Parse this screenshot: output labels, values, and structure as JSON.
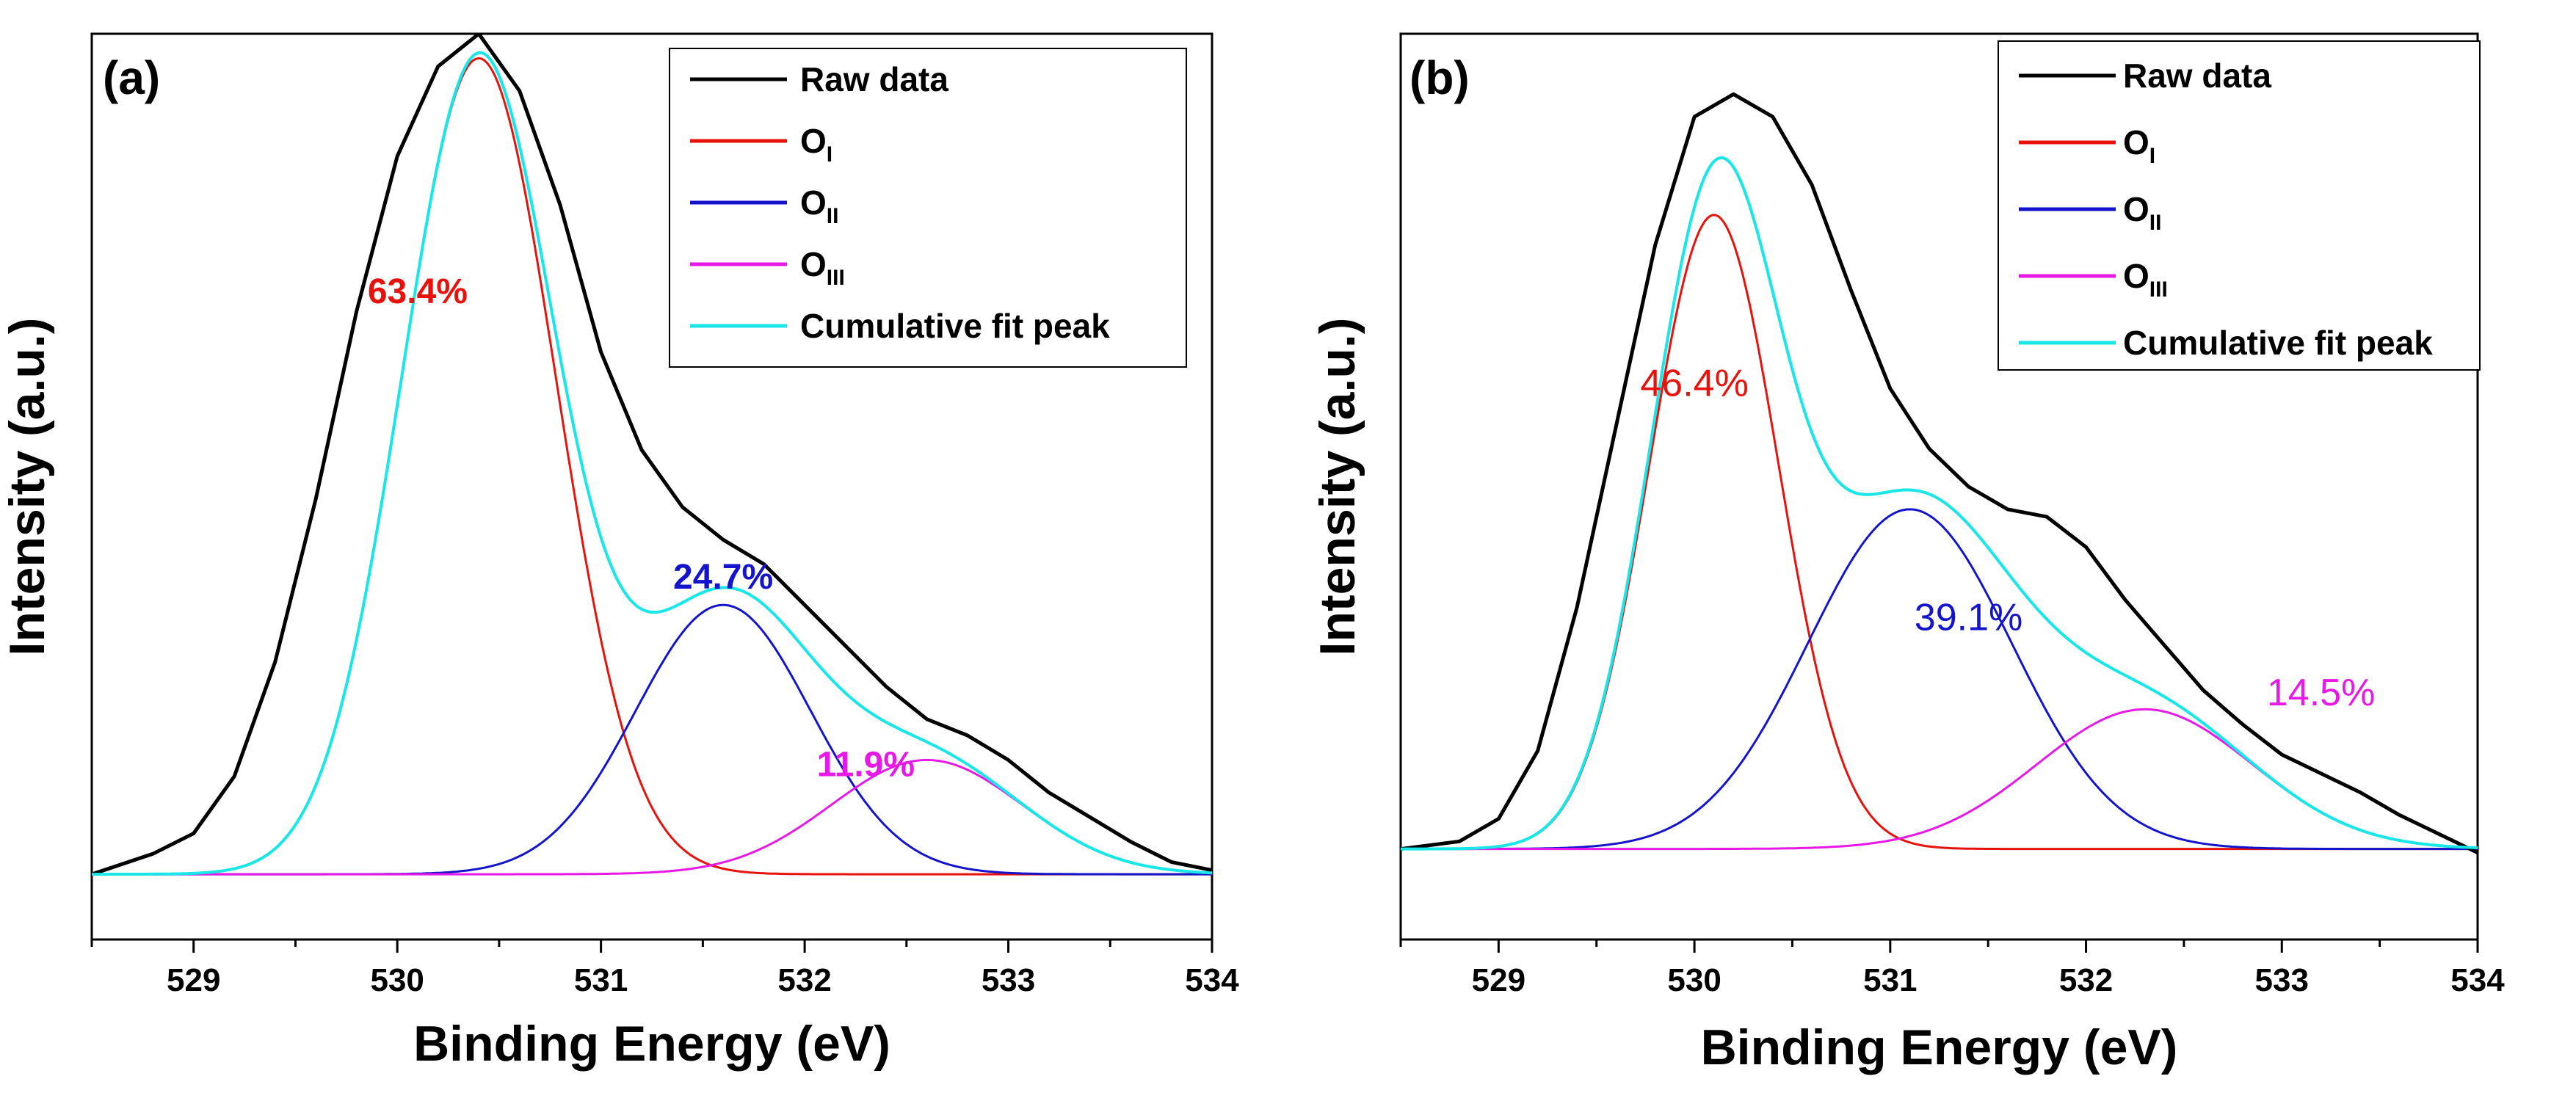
{
  "chart_data": [
    {
      "type": "line",
      "panel_label": "(a)",
      "xlabel": "Binding Energy (eV)",
      "ylabel": "Intensity (a.u.)",
      "xlim": [
        528.5,
        534
      ],
      "ylim": [
        -0.08,
        1.03
      ],
      "xticks": [
        "529",
        "530",
        "531",
        "532",
        "533",
        "534"
      ],
      "grid": false,
      "legend_position": "top-right",
      "legend": [
        {
          "main": "Raw data",
          "sub": "",
          "color": "#000000"
        },
        {
          "main": "O",
          "sub": "I",
          "color": "#e8120c"
        },
        {
          "main": "O",
          "sub": "II",
          "color": "#1414cc"
        },
        {
          "main": "O",
          "sub": "III",
          "color": "#e619e6"
        },
        {
          "main": "Cumulative fit peak",
          "sub": "",
          "color": "#19e6e6"
        }
      ],
      "annotations": [
        {
          "text": "63.4%",
          "x": 530.1,
          "y": 0.7,
          "color": "#e8120c"
        },
        {
          "text": "24.7%",
          "x": 531.6,
          "y": 0.35,
          "color": "#1414cc"
        },
        {
          "text": "11.9%",
          "x": 532.3,
          "y": 0.12,
          "color": "#e619e6"
        }
      ],
      "series": [
        {
          "name": "Raw data",
          "color": "#000000",
          "x": [
            528.5,
            528.8,
            529.0,
            529.2,
            529.4,
            529.6,
            529.8,
            530.0,
            530.2,
            530.4,
            530.6,
            530.8,
            531.0,
            531.2,
            531.4,
            531.6,
            531.8,
            532.0,
            532.2,
            532.4,
            532.6,
            532.8,
            533.0,
            533.2,
            533.4,
            533.6,
            533.8,
            534.0
          ],
          "y": [
            0.0,
            0.025,
            0.05,
            0.12,
            0.26,
            0.46,
            0.69,
            0.88,
            0.99,
            1.03,
            0.96,
            0.82,
            0.64,
            0.52,
            0.45,
            0.41,
            0.38,
            0.33,
            0.28,
            0.23,
            0.19,
            0.17,
            0.14,
            0.1,
            0.07,
            0.04,
            0.015,
            0.005
          ]
        },
        {
          "name": "O_I",
          "color": "#e8120c",
          "peak": {
            "amp": 1.0,
            "center": 530.4,
            "sigma": 0.38
          }
        },
        {
          "name": "O_II",
          "color": "#1414cc",
          "peak": {
            "amp": 0.33,
            "center": 531.6,
            "sigma": 0.43
          }
        },
        {
          "name": "O_III",
          "color": "#e619e6",
          "peak": {
            "amp": 0.14,
            "center": 532.6,
            "sigma": 0.47
          }
        },
        {
          "name": "Cumulative fit peak",
          "color": "#19e6e6",
          "cumulative": true
        }
      ]
    },
    {
      "type": "line",
      "panel_label": "(b)",
      "xlabel": "Binding Energy (eV)",
      "ylabel": "Intensity (a.u.)",
      "xlim": [
        528.5,
        534
      ],
      "ylim": [
        -0.12,
        1.08
      ],
      "xticks": [
        "529",
        "530",
        "531",
        "532",
        "533",
        "534"
      ],
      "grid": false,
      "legend_position": "top-right",
      "legend": [
        {
          "main": "Raw data",
          "sub": "",
          "color": "#000000"
        },
        {
          "main": "O",
          "sub": "I",
          "color": "#e8120c"
        },
        {
          "main": "O",
          "sub": "II",
          "color": "#1414cc"
        },
        {
          "main": "O",
          "sub": "III",
          "color": "#e619e6"
        },
        {
          "main": "Cumulative fit peak",
          "sub": "",
          "color": "#19e6e6"
        }
      ],
      "annotations": [
        {
          "text": "46.4%",
          "x": 530.0,
          "y": 0.6,
          "color": "#e8120c"
        },
        {
          "text": "39.1%",
          "x": 531.4,
          "y": 0.29,
          "color": "#1414cc"
        },
        {
          "text": "14.5%",
          "x": 533.2,
          "y": 0.19,
          "color": "#e619e6"
        }
      ],
      "series": [
        {
          "name": "Raw data",
          "color": "#000000",
          "x": [
            528.5,
            528.8,
            529.0,
            529.2,
            529.4,
            529.6,
            529.8,
            530.0,
            530.2,
            530.4,
            530.6,
            530.8,
            531.0,
            531.2,
            531.4,
            531.6,
            531.8,
            532.0,
            532.2,
            532.4,
            532.6,
            532.8,
            533.0,
            533.2,
            533.4,
            533.6,
            533.8,
            534.0
          ],
          "y": [
            0.0,
            0.01,
            0.04,
            0.13,
            0.32,
            0.56,
            0.8,
            0.97,
            1.0,
            0.97,
            0.88,
            0.74,
            0.61,
            0.53,
            0.48,
            0.45,
            0.44,
            0.4,
            0.33,
            0.27,
            0.21,
            0.165,
            0.125,
            0.1,
            0.075,
            0.045,
            0.02,
            -0.005
          ]
        },
        {
          "name": "O_I",
          "color": "#e8120c",
          "peak": {
            "amp": 0.84,
            "center": 530.1,
            "sigma": 0.33
          }
        },
        {
          "name": "O_II",
          "color": "#1414cc",
          "peak": {
            "amp": 0.45,
            "center": 531.1,
            "sigma": 0.52
          }
        },
        {
          "name": "O_III",
          "color": "#e619e6",
          "peak": {
            "amp": 0.185,
            "center": 532.3,
            "sigma": 0.55
          }
        },
        {
          "name": "Cumulative fit peak",
          "color": "#19e6e6",
          "cumulative": true
        }
      ]
    }
  ]
}
